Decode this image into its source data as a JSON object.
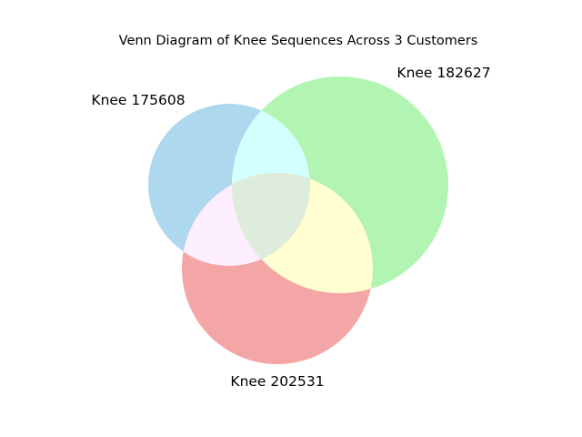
{
  "diagram": {
    "title": "Venn Diagram of Knee Sequences Across 3 Customers",
    "sets": [
      {
        "key": "a",
        "label": "Knee 175608"
      },
      {
        "key": "b",
        "label": "Knee 182627"
      },
      {
        "key": "c",
        "label": "Knee 202531"
      }
    ],
    "colors": {
      "a_only": "#add8ee",
      "b_only": "#b2f5b2",
      "c_only": "#f4a6a6",
      "a_and_b": "#d4ffff",
      "a_and_c": "#fdefff",
      "b_and_c": "#ffffd2",
      "a_b_c": "#deeddb"
    }
  }
}
